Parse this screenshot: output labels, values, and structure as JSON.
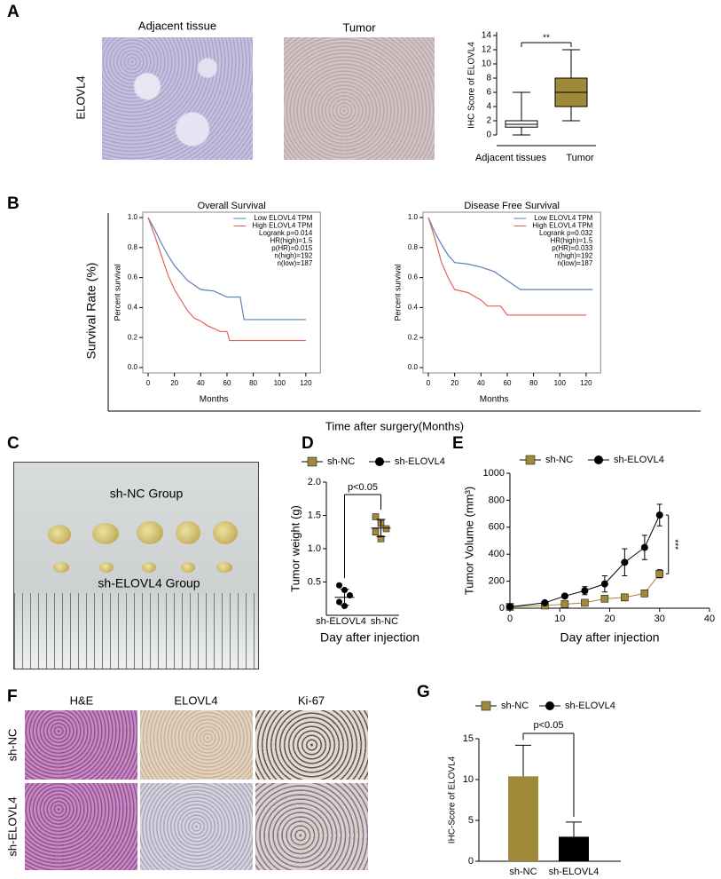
{
  "figure": {
    "panels": [
      "A",
      "B",
      "C",
      "D",
      "E",
      "F",
      "G"
    ],
    "panel_a": {
      "columns": [
        "Adjacent tissue",
        "Tumor"
      ],
      "row": "ELOVL4"
    },
    "panel_b": {
      "ylabel": "Survival Rate (%)",
      "xlabel": "Time after surgery(Months)"
    },
    "panel_c": {
      "groups": [
        "sh-NC Group",
        "sh-ELOVL4 Group"
      ]
    },
    "panel_f": {
      "columns": [
        "H&E",
        "ELOVL4",
        "Ki-67"
      ],
      "rows": [
        "sh-NC",
        "sh-ELOVL4"
      ]
    }
  },
  "chart_data": [
    {
      "type": "box",
      "ylabel": "IHC Score of ELOVL4",
      "categories": [
        "Adjacent tissues",
        "Tumor"
      ],
      "boxes": [
        {
          "min": 0,
          "q1": 1.1,
          "median": 1.5,
          "q3": 2,
          "max": 6
        },
        {
          "min": 2,
          "q1": 4,
          "median": 6,
          "q3": 8,
          "max": 12
        }
      ],
      "colors": [
        "#ffffff",
        "#a08a3a"
      ],
      "ylim": [
        0,
        14
      ],
      "yticks": [
        0,
        2,
        4,
        6,
        8,
        10,
        12,
        14
      ],
      "annotation": "**"
    },
    {
      "type": "line",
      "title": "Overall Survival",
      "xlabel": "Months",
      "ylabel": "Percent survival",
      "series": [
        {
          "name": "Low ELOVL4 TPM",
          "color": "#5b7fb5",
          "x": [
            0,
            5,
            10,
            15,
            20,
            25,
            30,
            35,
            40,
            50,
            60,
            70,
            73,
            90,
            120
          ],
          "values": [
            1,
            0.92,
            0.83,
            0.75,
            0.68,
            0.63,
            0.58,
            0.55,
            0.52,
            0.51,
            0.47,
            0.47,
            0.32,
            0.32,
            0.32
          ]
        },
        {
          "name": "High ELOVL4 TPM",
          "color": "#e0645a",
          "x": [
            0,
            5,
            10,
            15,
            20,
            25,
            30,
            35,
            40,
            45,
            55,
            60,
            62,
            90,
            120
          ],
          "values": [
            1,
            0.88,
            0.75,
            0.62,
            0.52,
            0.45,
            0.38,
            0.33,
            0.31,
            0.28,
            0.24,
            0.24,
            0.18,
            0.18,
            0.18
          ]
        }
      ],
      "annotations": [
        "Logrank p=0.014",
        "HR(high)=1.5",
        "p(HR)=0.015",
        "n(high)=192",
        "n(low)=187"
      ],
      "xlim": [
        0,
        127
      ],
      "xticks": [
        0,
        20,
        40,
        60,
        80,
        100,
        120
      ],
      "ylim": [
        0,
        1
      ],
      "yticks": [
        {
          "value": 0,
          "label": "0.0"
        },
        0.2,
        0.4,
        0.6,
        0.8,
        {
          "value": 1,
          "label": "1.0"
        }
      ],
      "legend": "upper right"
    },
    {
      "type": "line",
      "title": "Disease Free Survival",
      "xlabel": "Months",
      "ylabel": "Percent survival",
      "series": [
        {
          "name": "Low ELOVL4 TPM",
          "color": "#5b7fb5",
          "x": [
            0,
            5,
            10,
            15,
            20,
            30,
            40,
            50,
            55,
            60,
            70,
            100,
            125
          ],
          "values": [
            1,
            0.9,
            0.82,
            0.75,
            0.7,
            0.69,
            0.67,
            0.64,
            0.61,
            0.58,
            0.52,
            0.52,
            0.52
          ]
        },
        {
          "name": "High ELOVL4 TPM",
          "color": "#e0645a",
          "x": [
            0,
            5,
            10,
            15,
            20,
            30,
            40,
            45,
            55,
            60,
            100,
            120
          ],
          "values": [
            1,
            0.86,
            0.7,
            0.6,
            0.52,
            0.5,
            0.45,
            0.41,
            0.41,
            0.35,
            0.35,
            0.35
          ]
        }
      ],
      "annotations": [
        "Logrank p=0.032",
        "HR(high)=1.5",
        "p(HR)=0.033",
        "n(high)=192",
        "n(low)=187"
      ],
      "xlim": [
        0,
        127
      ],
      "xticks": [
        0,
        20,
        40,
        60,
        80,
        100,
        120
      ],
      "ylim": [
        0,
        1
      ],
      "yticks": [
        {
          "value": 0,
          "label": "0.0"
        },
        0.2,
        0.4,
        0.6,
        0.8,
        {
          "value": 1,
          "label": "1.0"
        }
      ],
      "legend": "upper right"
    },
    {
      "type": "strip",
      "ylabel": "Tumor weight (g)",
      "xlabel": "Day after injection",
      "categories": [
        "sh-ELOVL4",
        "sh-NC"
      ],
      "series": [
        {
          "name": "sh-NC",
          "color": "#a08a3a",
          "marker": "square",
          "values": [
            1.48,
            1.38,
            1.3,
            1.25,
            1.15
          ],
          "mean": 1.31,
          "error": 0.13
        },
        {
          "name": "sh-ELOVL4",
          "color": "#000000",
          "marker": "circle",
          "values": [
            0.45,
            0.38,
            0.3,
            0.2,
            0.14
          ],
          "mean": 0.27,
          "error": 0.12
        }
      ],
      "ylim": [
        0,
        2
      ],
      "yticks": [
        0.5,
        {
          "value": 1,
          "label": "1.0"
        },
        1.5,
        {
          "value": 2,
          "label": "2.0"
        }
      ],
      "annotation": "p<0.05",
      "legend": "top"
    },
    {
      "type": "line",
      "xlabel": "Day after injection",
      "ylabel": "Tumor Volume (mm³)",
      "x": [
        0,
        7,
        11,
        15,
        19,
        23,
        27,
        30
      ],
      "series": [
        {
          "name": "sh-NC",
          "color": "#a08a3a",
          "marker": "square",
          "values": [
            10,
            20,
            30,
            40,
            70,
            80,
            110,
            255
          ],
          "errors": [
            5,
            8,
            10,
            12,
            20,
            25,
            25,
            30
          ]
        },
        {
          "name": "sh-ELOVL4",
          "color": "#000000",
          "marker": "circle",
          "values": [
            10,
            40,
            90,
            130,
            180,
            340,
            450,
            690
          ],
          "errors": [
            5,
            10,
            15,
            30,
            60,
            100,
            90,
            80
          ]
        }
      ],
      "xlim": [
        0,
        40
      ],
      "xticks": [
        0,
        10,
        20,
        30,
        40
      ],
      "ylim": [
        0,
        1000
      ],
      "yticks": [
        0,
        200,
        400,
        600,
        800,
        1000
      ],
      "annotation": "***",
      "legend": "top"
    },
    {
      "type": "bar",
      "ylabel": "IHC-Score of ELOVL4",
      "categories": [
        "sh-NC",
        "sh-ELOVL4"
      ],
      "values": [
        10.4,
        3.0
      ],
      "errors": [
        3.8,
        1.8
      ],
      "colors": [
        "#a08a3a",
        "#000000"
      ],
      "markers": [
        "square",
        "circle"
      ],
      "ylim": [
        0,
        15
      ],
      "yticks": [
        0,
        5,
        10,
        15
      ],
      "annotation": "p<0.05",
      "legend": "top"
    }
  ]
}
